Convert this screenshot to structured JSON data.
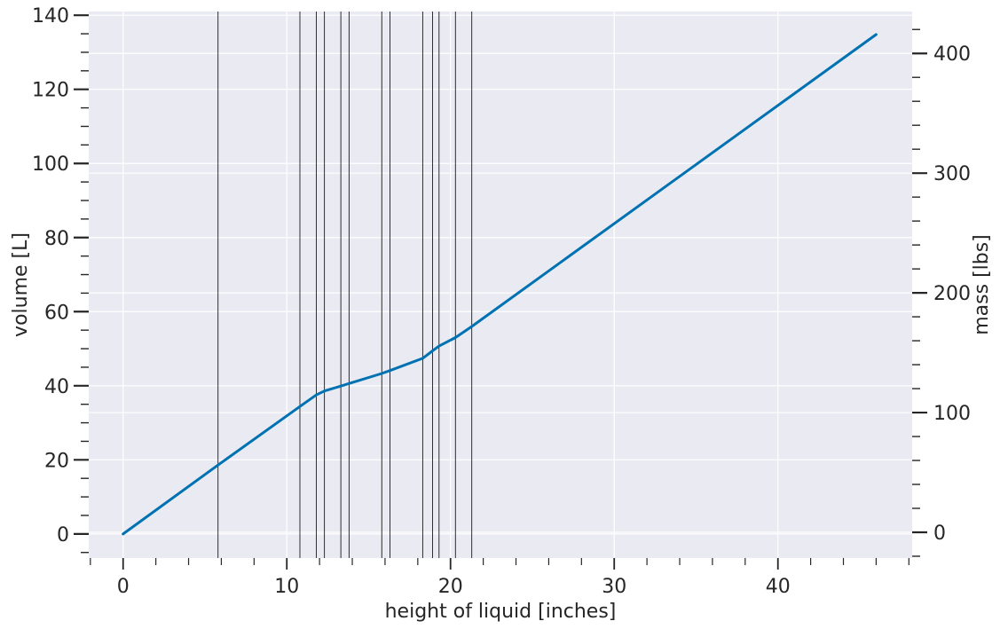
{
  "chart_data": {
    "type": "line",
    "xlabel": "height of liquid [inches]",
    "ylabel": "volume [L]",
    "y2label": "mass [lbs]",
    "xlim": [
      -2.1,
      48.2
    ],
    "ylim": [
      -6.5,
      141
    ],
    "y2lim": [
      -21.5,
      435
    ],
    "x_ticks": [
      0,
      10,
      20,
      30,
      40
    ],
    "x_minor_step": 2,
    "y_ticks": [
      0,
      20,
      40,
      60,
      80,
      100,
      120,
      140
    ],
    "y_minor_step": 5,
    "y2_ticks": [
      0,
      100,
      200,
      300,
      400
    ],
    "y2_minor_step": 20,
    "grid": true,
    "series": [
      {
        "color": "#0072b2",
        "x": [
          0,
          5.8,
          10.8,
          11.8,
          12.3,
          13.3,
          13.8,
          15.8,
          16.3,
          18.3,
          18.9,
          19.3,
          20.3,
          21.3,
          46
        ],
        "values": [
          0,
          18.6,
          34.4,
          37.5,
          38.6,
          39.9,
          40.6,
          43.3,
          44.1,
          47.4,
          49.4,
          50.7,
          53,
          56,
          134.8
        ]
      }
    ],
    "vlines": [
      5.8,
      10.8,
      11.8,
      12.3,
      13.3,
      13.8,
      15.8,
      16.3,
      18.3,
      18.9,
      19.3,
      20.3,
      21.3
    ],
    "vline_color": "#000000"
  }
}
